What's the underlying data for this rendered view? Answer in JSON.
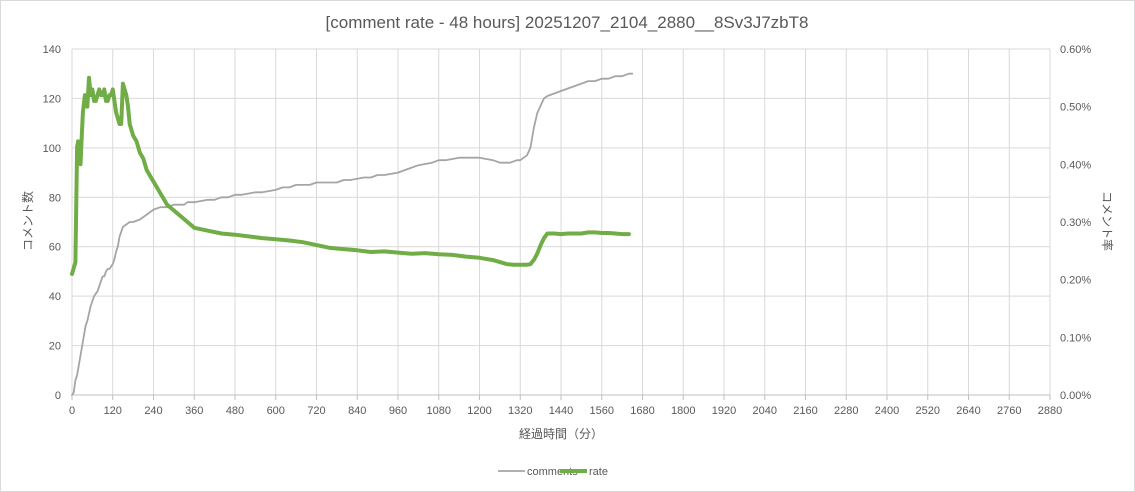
{
  "chart_data": {
    "type": "line",
    "title": "[comment rate - 48 hours] 20251207_2104_2880__8Sv3J7zbT8",
    "xlabel": "経過時間（分）",
    "ylabel": "コメント数",
    "y2label": "コメント率",
    "xlim": [
      0,
      2880
    ],
    "ylim": [
      0,
      140
    ],
    "y2lim": [
      0,
      0.6
    ],
    "x_ticks": [
      "0",
      "120",
      "240",
      "360",
      "480",
      "600",
      "720",
      "840",
      "960",
      "1080",
      "1200",
      "1320",
      "1440",
      "1560",
      "1680",
      "1800",
      "1920",
      "2040",
      "2160",
      "2280",
      "2400",
      "2520",
      "2640",
      "2760",
      "2880"
    ],
    "y_ticks": [
      "0",
      "20",
      "40",
      "60",
      "80",
      "100",
      "120",
      "140"
    ],
    "y2_ticks": [
      "0.00%",
      "0.10%",
      "0.20%",
      "0.30%",
      "0.40%",
      "0.50%",
      "0.60%"
    ],
    "grid": true,
    "legend_position": "bottom",
    "series": [
      {
        "name": "comments",
        "axis": "left",
        "color": "#a5a5a5",
        "x": [
          0,
          5,
          10,
          15,
          20,
          25,
          30,
          35,
          40,
          45,
          50,
          55,
          60,
          65,
          70,
          75,
          80,
          85,
          90,
          95,
          100,
          105,
          110,
          115,
          120,
          125,
          130,
          135,
          140,
          145,
          150,
          160,
          170,
          180,
          200,
          220,
          240,
          260,
          280,
          300,
          330,
          340,
          360,
          400,
          420,
          440,
          460,
          480,
          500,
          540,
          560,
          600,
          620,
          640,
          660,
          700,
          720,
          760,
          780,
          800,
          820,
          860,
          880,
          900,
          920,
          960,
          980,
          1000,
          1020,
          1060,
          1080,
          1100,
          1140,
          1200,
          1240,
          1260,
          1290,
          1310,
          1320,
          1330,
          1340,
          1350,
          1360,
          1370,
          1380,
          1390,
          1400,
          1420,
          1440,
          1460,
          1480,
          1500,
          1520,
          1540,
          1560,
          1580,
          1600,
          1620,
          1640,
          1650
        ],
        "values": [
          0,
          1,
          6,
          8,
          12,
          16,
          20,
          24,
          28,
          30,
          33,
          36,
          38,
          40,
          41,
          42,
          44,
          46,
          48,
          48,
          50,
          51,
          51,
          52,
          53,
          55,
          58,
          60,
          64,
          66,
          68,
          69,
          70,
          70,
          71,
          73,
          75,
          76,
          76,
          77,
          77,
          78,
          78,
          79,
          79,
          80,
          80,
          81,
          81,
          82,
          82,
          83,
          84,
          84,
          85,
          85,
          86,
          86,
          86,
          87,
          87,
          88,
          88,
          89,
          89,
          90,
          91,
          92,
          93,
          94,
          95,
          95,
          96,
          96,
          95,
          94,
          94,
          95,
          95,
          96,
          97,
          100,
          108,
          114,
          117,
          120,
          121,
          122,
          123,
          124,
          125,
          126,
          127,
          127,
          128,
          128,
          129,
          129,
          130,
          130
        ]
      },
      {
        "name": "rate",
        "axis": "right",
        "color": "#70ad47",
        "x": [
          0,
          5,
          10,
          15,
          18,
          22,
          25,
          28,
          32,
          38,
          45,
          50,
          55,
          60,
          65,
          70,
          75,
          80,
          85,
          90,
          95,
          100,
          105,
          110,
          115,
          120,
          125,
          130,
          135,
          140,
          145,
          150,
          155,
          160,
          165,
          170,
          180,
          190,
          200,
          210,
          220,
          230,
          240,
          250,
          260,
          270,
          280,
          300,
          320,
          340,
          360,
          400,
          440,
          480,
          520,
          560,
          600,
          640,
          680,
          720,
          760,
          800,
          840,
          880,
          920,
          960,
          1000,
          1040,
          1080,
          1120,
          1160,
          1200,
          1240,
          1280,
          1300,
          1320,
          1340,
          1350,
          1360,
          1370,
          1380,
          1390,
          1400,
          1420,
          1440,
          1460,
          1480,
          1500,
          1520,
          1540,
          1560,
          1580,
          1600,
          1620,
          1640
        ],
        "values": [
          0.21,
          0.22,
          0.23,
          0.43,
          0.44,
          0.43,
          0.4,
          0.44,
          0.49,
          0.52,
          0.5,
          0.55,
          0.52,
          0.53,
          0.51,
          0.51,
          0.52,
          0.53,
          0.52,
          0.52,
          0.53,
          0.51,
          0.51,
          0.52,
          0.52,
          0.53,
          0.51,
          0.49,
          0.48,
          0.47,
          0.47,
          0.54,
          0.53,
          0.52,
          0.5,
          0.47,
          0.45,
          0.44,
          0.42,
          0.41,
          0.39,
          0.38,
          0.37,
          0.36,
          0.35,
          0.34,
          0.33,
          0.32,
          0.31,
          0.3,
          0.29,
          0.285,
          0.28,
          0.278,
          0.275,
          0.272,
          0.27,
          0.268,
          0.265,
          0.26,
          0.255,
          0.253,
          0.251,
          0.248,
          0.249,
          0.247,
          0.245,
          0.246,
          0.244,
          0.243,
          0.24,
          0.238,
          0.234,
          0.227,
          0.226,
          0.226,
          0.226,
          0.227,
          0.234,
          0.245,
          0.26,
          0.272,
          0.28,
          0.28,
          0.279,
          0.28,
          0.28,
          0.28,
          0.282,
          0.282,
          0.281,
          0.281,
          0.28,
          0.279,
          0.279
        ]
      }
    ]
  }
}
